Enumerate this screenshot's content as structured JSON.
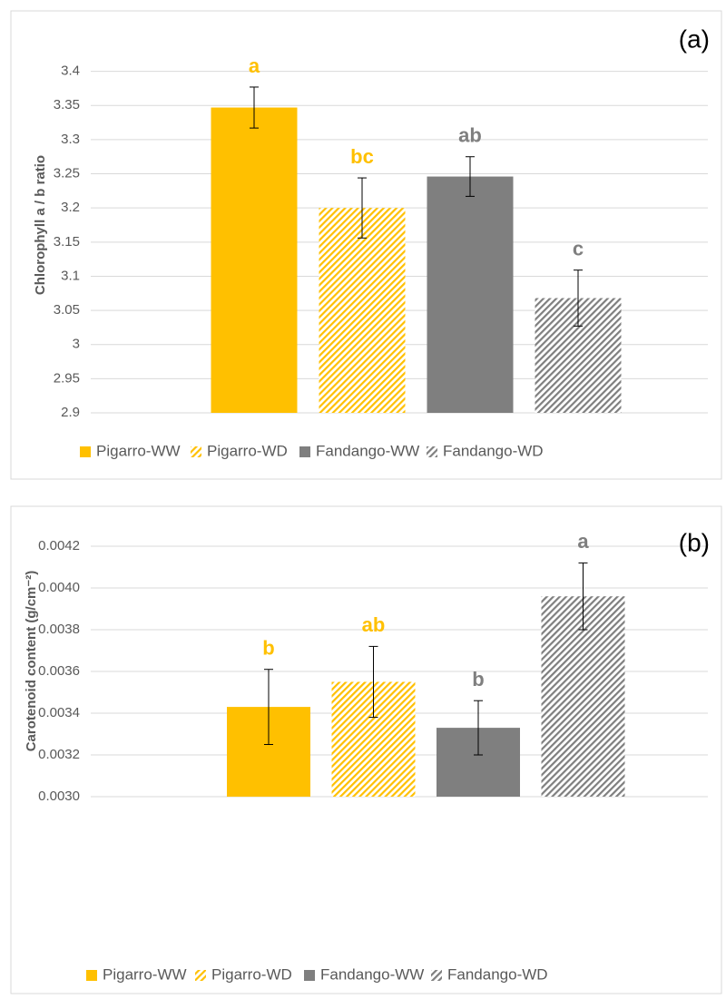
{
  "chart_data": [
    {
      "type": "bar",
      "panel_label": "(a)",
      "y_label": "Chlorophyll a / b ratio",
      "ylim": [
        2.9,
        3.45
      ],
      "yticks": [
        2.9,
        2.95,
        3,
        3.05,
        3.1,
        3.15,
        3.2,
        3.25,
        3.3,
        3.35,
        3.4
      ],
      "grid": true,
      "legend_position": "bottom",
      "series": [
        {
          "name": "Pigarro-WW",
          "color": "#FFC000",
          "pattern": "solid",
          "values": [
            3.347
          ],
          "errors": [
            0.03
          ],
          "letters": [
            "a"
          ]
        },
        {
          "name": "Pigarro-WD",
          "color": "#FFC000",
          "pattern": "hatch",
          "values": [
            3.2
          ],
          "errors": [
            0.044
          ],
          "letters": [
            "bc"
          ]
        },
        {
          "name": "Fandango-WW",
          "color": "#7F7F7F",
          "pattern": "solid",
          "values": [
            3.246
          ],
          "errors": [
            0.029
          ],
          "letters": [
            "ab"
          ]
        },
        {
          "name": "Fandango-WD",
          "color": "#7F7F7F",
          "pattern": "hatch",
          "values": [
            3.068
          ],
          "errors": [
            0.041
          ],
          "letters": [
            "c"
          ]
        }
      ]
    },
    {
      "type": "bar",
      "panel_label": "(b)",
      "y_label": "Carotenoid content (g/cm⁻²)",
      "ylim": [
        0.003,
        0.0043
      ],
      "yticks": [
        {
          "value": 0.003,
          "label": "0.0030"
        },
        {
          "value": 0.0032,
          "label": "0.0032"
        },
        {
          "value": 0.0034,
          "label": "0.0034"
        },
        {
          "value": 0.0036,
          "label": "0.0036"
        },
        {
          "value": 0.0038,
          "label": "0.0038"
        },
        {
          "value": 0.004,
          "label": "0.0040"
        },
        {
          "value": 0.0042,
          "label": "0.0042"
        }
      ],
      "grid": true,
      "legend_position": "bottom",
      "series": [
        {
          "name": "Pigarro-WW",
          "color": "#FFC000",
          "pattern": "solid",
          "values": [
            0.00343
          ],
          "errors": [
            0.00018
          ],
          "letters": [
            "b"
          ]
        },
        {
          "name": "Pigarro-WD",
          "color": "#FFC000",
          "pattern": "hatch",
          "values": [
            0.00355
          ],
          "errors": [
            0.00017
          ],
          "letters": [
            "ab"
          ]
        },
        {
          "name": "Fandango-WW",
          "color": "#7F7F7F",
          "pattern": "solid",
          "values": [
            0.00333
          ],
          "errors": [
            0.00013
          ],
          "letters": [
            "b"
          ]
        },
        {
          "name": "Fandango-WD",
          "color": "#7F7F7F",
          "pattern": "hatch",
          "values": [
            0.00396
          ],
          "errors": [
            0.00016
          ],
          "letters": [
            "a"
          ]
        }
      ]
    }
  ]
}
